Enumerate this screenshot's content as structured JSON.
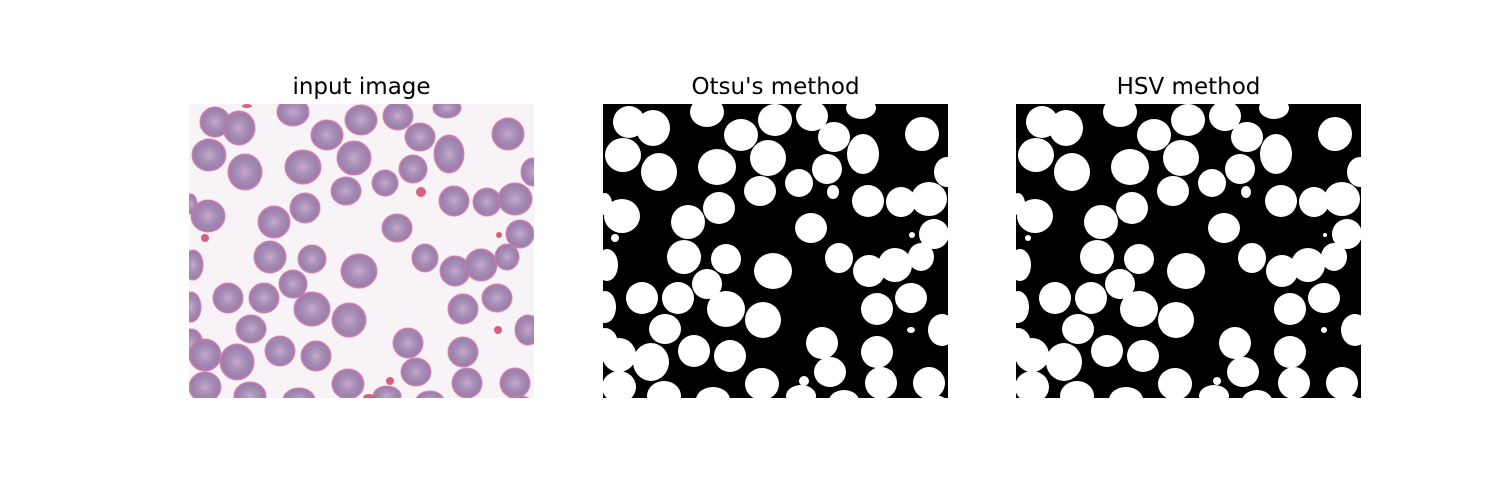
{
  "figure": {
    "panels": [
      {
        "title": "input image"
      },
      {
        "title": "Otsu's method"
      },
      {
        "title": "HSV method"
      }
    ]
  },
  "colors": {
    "background": "#f7f3f7",
    "cell_fill": "#a790b6",
    "cell_center": "#cba7cc",
    "cell_rim": "#c87aa8",
    "platelet": "#d9607f",
    "mask_background": "#000000",
    "mask_foreground": "#ffffff"
  }
}
